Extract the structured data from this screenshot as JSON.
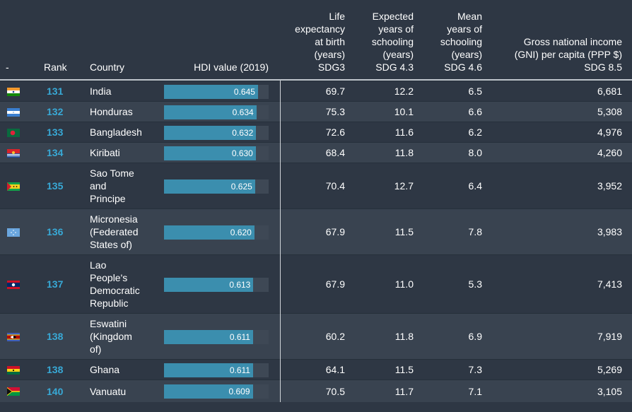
{
  "headers": {
    "flag": "-",
    "rank": "Rank",
    "country": "Country",
    "hdi": "HDI value (2019)",
    "life": [
      "Life",
      "expectancy",
      "at birth",
      "(years)",
      "SDG3"
    ],
    "expected": [
      "Expected",
      "years of",
      "schooling",
      "(years)",
      "SDG 4.3"
    ],
    "mean": [
      "Mean",
      "years of",
      "schooling",
      "(years)",
      "SDG 4.6"
    ],
    "gni": [
      "Gross national income",
      "(GNI) per capita (PPP $)",
      "SDG 8.5"
    ]
  },
  "colors": {
    "background": "#2e3744",
    "alt_row": "#394350",
    "rank": "#38a9d6",
    "bar": "#3b8eae",
    "bar_track": "#3e4855"
  },
  "rows": [
    {
      "flag": "india-flag-icon",
      "rank": "131",
      "country": [
        "India"
      ],
      "hdi": "0.645",
      "life": "69.7",
      "expected": "12.2",
      "mean": "6.5",
      "gni": "6,681"
    },
    {
      "flag": "honduras-flag-icon",
      "rank": "132",
      "country": [
        "Honduras"
      ],
      "hdi": "0.634",
      "life": "75.3",
      "expected": "10.1",
      "mean": "6.6",
      "gni": "5,308"
    },
    {
      "flag": "bangladesh-flag-icon",
      "rank": "133",
      "country": [
        "Bangladesh"
      ],
      "hdi": "0.632",
      "life": "72.6",
      "expected": "11.6",
      "mean": "6.2",
      "gni": "4,976"
    },
    {
      "flag": "kiribati-flag-icon",
      "rank": "134",
      "country": [
        "Kiribati"
      ],
      "hdi": "0.630",
      "life": "68.4",
      "expected": "11.8",
      "mean": "8.0",
      "gni": "4,260"
    },
    {
      "flag": "sao-tome-flag-icon",
      "rank": "135",
      "country": [
        "Sao Tome",
        "and",
        "Principe"
      ],
      "hdi": "0.625",
      "life": "70.4",
      "expected": "12.7",
      "mean": "6.4",
      "gni": "3,952"
    },
    {
      "flag": "micronesia-flag-icon",
      "rank": "136",
      "country": [
        "Micronesia",
        "(Federated",
        "States of)"
      ],
      "hdi": "0.620",
      "life": "67.9",
      "expected": "11.5",
      "mean": "7.8",
      "gni": "3,983"
    },
    {
      "flag": "laos-flag-icon",
      "rank": "137",
      "country": [
        "Lao",
        "People's",
        "Democratic",
        "Republic"
      ],
      "hdi": "0.613",
      "life": "67.9",
      "expected": "11.0",
      "mean": "5.3",
      "gni": "7,413"
    },
    {
      "flag": "eswatini-flag-icon",
      "rank": "138",
      "country": [
        "Eswatini",
        "(Kingdom",
        "of)"
      ],
      "hdi": "0.611",
      "life": "60.2",
      "expected": "11.8",
      "mean": "6.9",
      "gni": "7,919"
    },
    {
      "flag": "ghana-flag-icon",
      "rank": "138",
      "country": [
        "Ghana"
      ],
      "hdi": "0.611",
      "life": "64.1",
      "expected": "11.5",
      "mean": "7.3",
      "gni": "5,269"
    },
    {
      "flag": "vanuatu-flag-icon",
      "rank": "140",
      "country": [
        "Vanuatu"
      ],
      "hdi": "0.609",
      "life": "70.5",
      "expected": "11.7",
      "mean": "7.1",
      "gni": "3,105"
    }
  ]
}
